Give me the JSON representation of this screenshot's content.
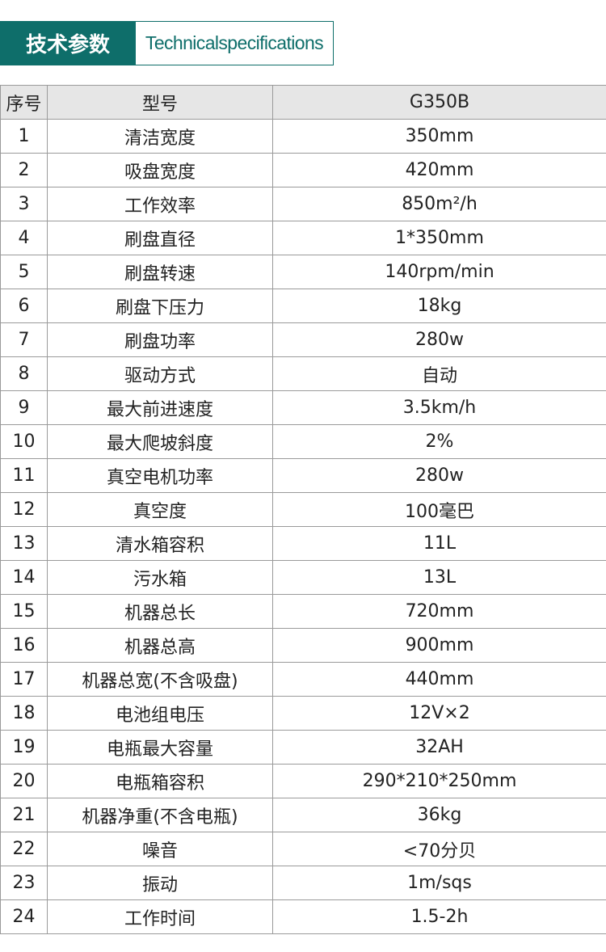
{
  "header": {
    "title_cn": "技术参数",
    "title_en": "Technicalspecifications",
    "accent": "#0e6e6a"
  },
  "table": {
    "columns": [
      "序号",
      "型号",
      "G350B"
    ],
    "rows": [
      [
        "1",
        "清洁宽度",
        "350mm"
      ],
      [
        "2",
        "吸盘宽度",
        "420mm"
      ],
      [
        "3",
        "工作效率",
        "850m²/h"
      ],
      [
        "4",
        "刷盘直径",
        "1*350mm"
      ],
      [
        "5",
        "刷盘转速",
        "140rpm/min"
      ],
      [
        "6",
        "刷盘下压力",
        "18kg"
      ],
      [
        "7",
        "刷盘功率",
        "280w"
      ],
      [
        "8",
        "驱动方式",
        "自动"
      ],
      [
        "9",
        "最大前进速度",
        "3.5km/h"
      ],
      [
        "10",
        "最大爬坡斜度",
        "2%"
      ],
      [
        "11",
        "真空电机功率",
        "280w"
      ],
      [
        "12",
        "真空度",
        "100毫巴"
      ],
      [
        "13",
        "清水箱容积",
        "11L"
      ],
      [
        "14",
        "污水箱",
        "13L"
      ],
      [
        "15",
        "机器总长",
        "720mm"
      ],
      [
        "16",
        "机器总高",
        "900mm"
      ],
      [
        "17",
        "机器总宽(不含吸盘)",
        "440mm"
      ],
      [
        "18",
        "电池组电压",
        "12V×2"
      ],
      [
        "19",
        "电瓶最大容量",
        "32AH"
      ],
      [
        "20",
        "电瓶箱容积",
        "290*210*250mm"
      ],
      [
        "21",
        "机器净重(不含电瓶)",
        "36kg"
      ],
      [
        "22",
        "噪音",
        "<70分贝"
      ],
      [
        "23",
        "振动",
        "1m/sqs"
      ],
      [
        "24",
        "工作时间",
        "1.5-2h"
      ]
    ]
  }
}
